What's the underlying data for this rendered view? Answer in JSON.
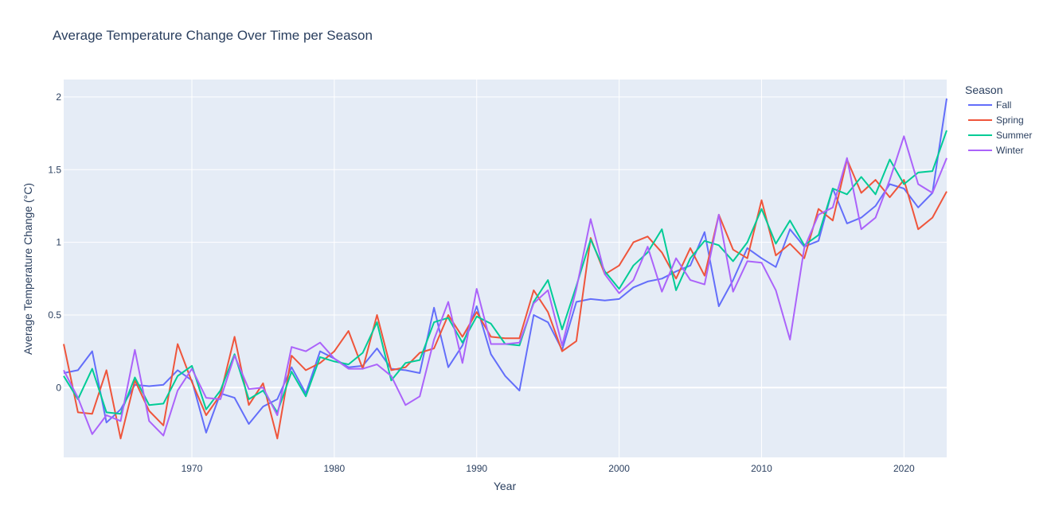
{
  "chart_data": {
    "type": "line",
    "title": "Average Temperature Change Over Time per Season",
    "xlabel": "Year",
    "ylabel": "Average Temperature Change (°C)",
    "xlim": [
      1961,
      2023
    ],
    "ylim": [
      -0.48,
      2.12
    ],
    "x_ticks": [
      1970,
      1980,
      1990,
      2000,
      2010,
      2020
    ],
    "y_ticks": [
      0,
      0.5,
      1,
      1.5,
      2
    ],
    "y_tick_labels": [
      "0",
      "0.5",
      "1",
      "1.5",
      "2"
    ],
    "grid": true,
    "legend_title": "Season",
    "legend_position": "top-right",
    "x": [
      1961,
      1962,
      1963,
      1964,
      1965,
      1966,
      1967,
      1968,
      1969,
      1970,
      1971,
      1972,
      1973,
      1974,
      1975,
      1976,
      1977,
      1978,
      1979,
      1980,
      1981,
      1982,
      1983,
      1984,
      1985,
      1986,
      1987,
      1988,
      1989,
      1990,
      1991,
      1992,
      1993,
      1994,
      1995,
      1996,
      1997,
      1998,
      1999,
      2000,
      2001,
      2002,
      2003,
      2004,
      2005,
      2006,
      2007,
      2008,
      2009,
      2010,
      2011,
      2012,
      2013,
      2014,
      2015,
      2016,
      2017,
      2018,
      2019,
      2020,
      2021,
      2022,
      2023
    ],
    "series": [
      {
        "name": "Fall",
        "color": "#636efa",
        "values": [
          0.1,
          0.12,
          0.25,
          -0.24,
          -0.15,
          0.02,
          0.01,
          0.02,
          0.12,
          0.05,
          -0.31,
          -0.04,
          -0.07,
          -0.25,
          -0.13,
          -0.08,
          0.14,
          -0.04,
          0.25,
          0.2,
          0.14,
          0.15,
          0.27,
          0.13,
          0.12,
          0.1,
          0.55,
          0.14,
          0.29,
          0.56,
          0.23,
          0.08,
          -0.02,
          0.5,
          0.45,
          0.26,
          0.59,
          0.61,
          0.6,
          0.61,
          0.69,
          0.73,
          0.75,
          0.8,
          0.84,
          1.07,
          0.56,
          0.74,
          0.96,
          0.89,
          0.83,
          1.09,
          0.97,
          1.01,
          1.37,
          1.13,
          1.17,
          1.25,
          1.4,
          1.37,
          1.24,
          1.34,
          1.99
        ]
      },
      {
        "name": "Spring",
        "color": "#ef553b",
        "values": [
          0.3,
          -0.17,
          -0.18,
          0.12,
          -0.35,
          0.05,
          -0.16,
          -0.26,
          0.3,
          0.04,
          -0.19,
          -0.05,
          0.35,
          -0.12,
          0.03,
          -0.35,
          0.22,
          0.12,
          0.17,
          0.25,
          0.39,
          0.13,
          0.5,
          0.12,
          0.14,
          0.24,
          0.27,
          0.5,
          0.35,
          0.52,
          0.35,
          0.34,
          0.34,
          0.67,
          0.52,
          0.25,
          0.32,
          1.03,
          0.78,
          0.84,
          1.0,
          1.04,
          0.93,
          0.75,
          0.96,
          0.77,
          1.19,
          0.95,
          0.89,
          1.29,
          0.91,
          0.99,
          0.89,
          1.23,
          1.15,
          1.57,
          1.34,
          1.43,
          1.31,
          1.43,
          1.09,
          1.17,
          1.35
        ]
      },
      {
        "name": "Summer",
        "color": "#00cc96",
        "values": [
          0.08,
          -0.08,
          0.13,
          -0.17,
          -0.18,
          0.07,
          -0.12,
          -0.11,
          0.08,
          0.15,
          -0.15,
          -0.02,
          0.23,
          -0.08,
          -0.02,
          -0.17,
          0.11,
          -0.06,
          0.21,
          0.18,
          0.16,
          0.24,
          0.45,
          0.05,
          0.17,
          0.19,
          0.45,
          0.48,
          0.31,
          0.49,
          0.44,
          0.3,
          0.29,
          0.59,
          0.74,
          0.4,
          0.7,
          1.02,
          0.8,
          0.68,
          0.84,
          0.93,
          1.09,
          0.67,
          0.89,
          1.01,
          0.98,
          0.87,
          1.0,
          1.23,
          0.99,
          1.15,
          0.98,
          1.05,
          1.37,
          1.33,
          1.45,
          1.33,
          1.57,
          1.4,
          1.48,
          1.49,
          1.77
        ]
      },
      {
        "name": "Winter",
        "color": "#ab63fa",
        "values": [
          0.12,
          -0.07,
          -0.32,
          -0.19,
          -0.23,
          0.26,
          -0.23,
          -0.33,
          -0.02,
          0.13,
          -0.07,
          -0.08,
          0.22,
          -0.01,
          0.0,
          -0.19,
          0.28,
          0.25,
          0.31,
          0.2,
          0.13,
          0.13,
          0.16,
          0.08,
          -0.12,
          -0.06,
          0.33,
          0.59,
          0.17,
          0.68,
          0.3,
          0.3,
          0.31,
          0.58,
          0.67,
          0.29,
          0.68,
          1.16,
          0.78,
          0.65,
          0.74,
          0.97,
          0.66,
          0.89,
          0.74,
          0.71,
          1.19,
          0.66,
          0.87,
          0.86,
          0.67,
          0.33,
          0.96,
          1.19,
          1.24,
          1.58,
          1.09,
          1.17,
          1.43,
          1.73,
          1.4,
          1.34,
          1.58
        ]
      }
    ]
  }
}
